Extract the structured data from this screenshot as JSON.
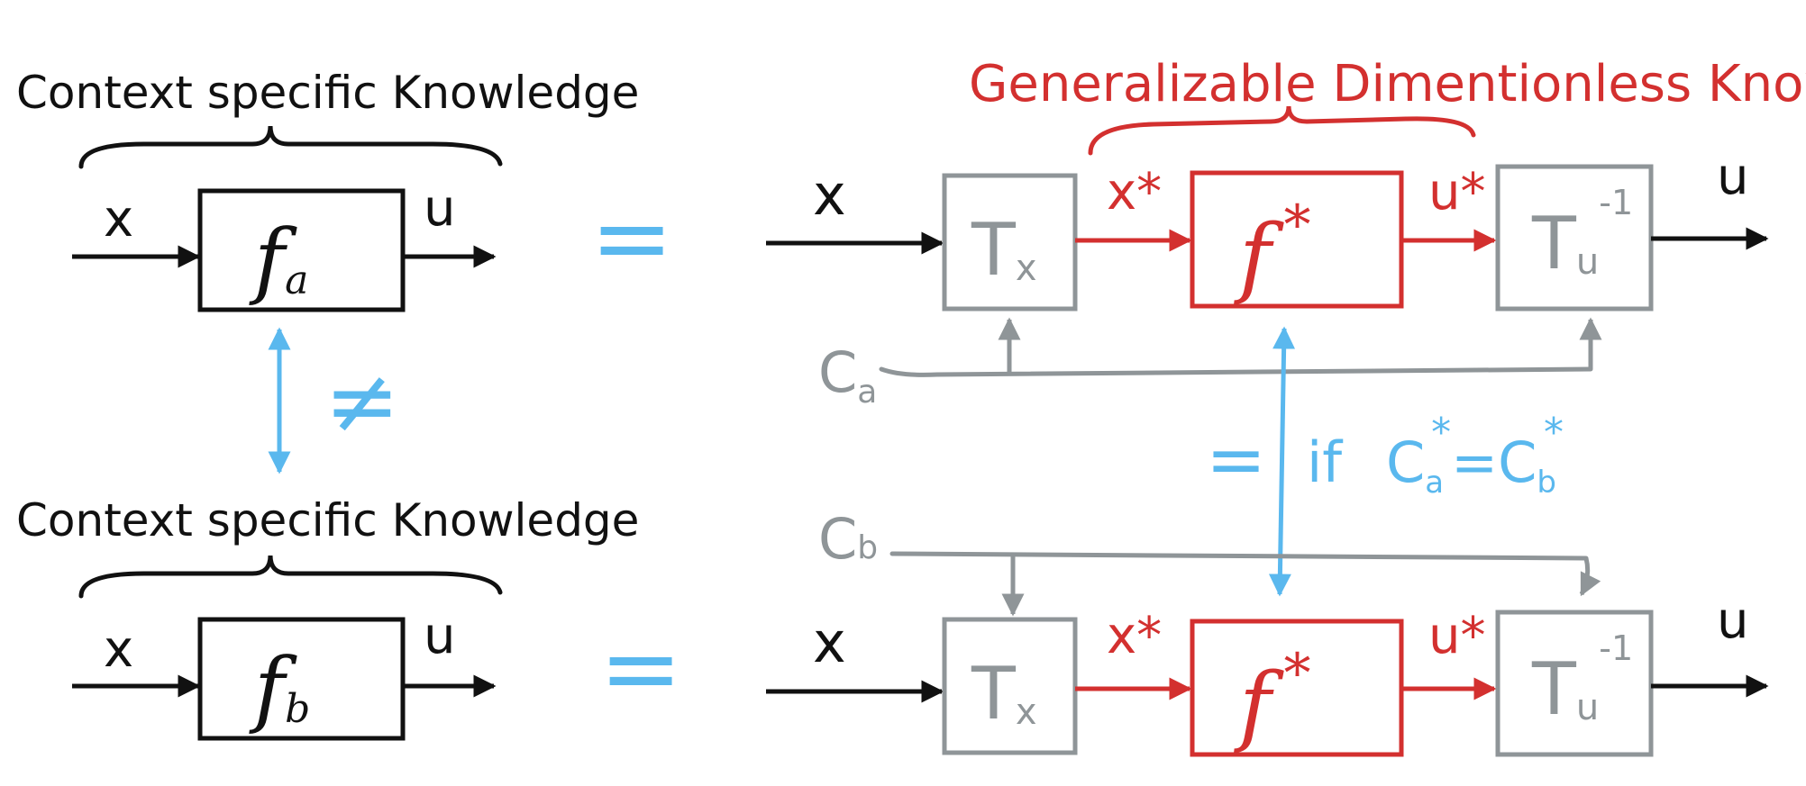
{
  "colors": {
    "ink": "#111111",
    "red": "#d3302f",
    "gray": "#8f9598",
    "blue": "#5ab8ee"
  },
  "left": {
    "top": {
      "heading": "Context specific Knowledge",
      "input_label": "x",
      "output_label": "u",
      "function_label": "f",
      "function_subscript": "a"
    },
    "bottom": {
      "heading": "Context specific Knowledge",
      "input_label": "x",
      "output_label": "u",
      "function_label": "f",
      "function_subscript": "b"
    },
    "not_equal": "≠",
    "equals_top": "=",
    "equals_bottom": "="
  },
  "right": {
    "heading": "Generalizable Dimentionless Knowledge",
    "top": {
      "input_label": "x",
      "transform_x": "T",
      "transform_x_sub": "x",
      "x_star": "x*",
      "function_label": "f",
      "function_star": "*",
      "u_star": "u*",
      "transform_u": "T",
      "transform_u_sub": "u",
      "transform_u_sup": "-1",
      "output_label": "u",
      "context_label": "C",
      "context_sub": "a"
    },
    "bottom": {
      "input_label": "x",
      "transform_x": "T",
      "transform_x_sub": "x",
      "x_star": "x*",
      "function_label": "f",
      "function_star": "*",
      "u_star": "u*",
      "transform_u": "T",
      "transform_u_sub": "u",
      "transform_u_sup": "-1",
      "output_label": "u",
      "context_label": "C",
      "context_sub": "b"
    },
    "condition": {
      "eq": "=",
      "if_word": "if",
      "c": "C",
      "a_sub": "a",
      "b_sub": "b",
      "star": "*",
      "equals": "="
    }
  }
}
